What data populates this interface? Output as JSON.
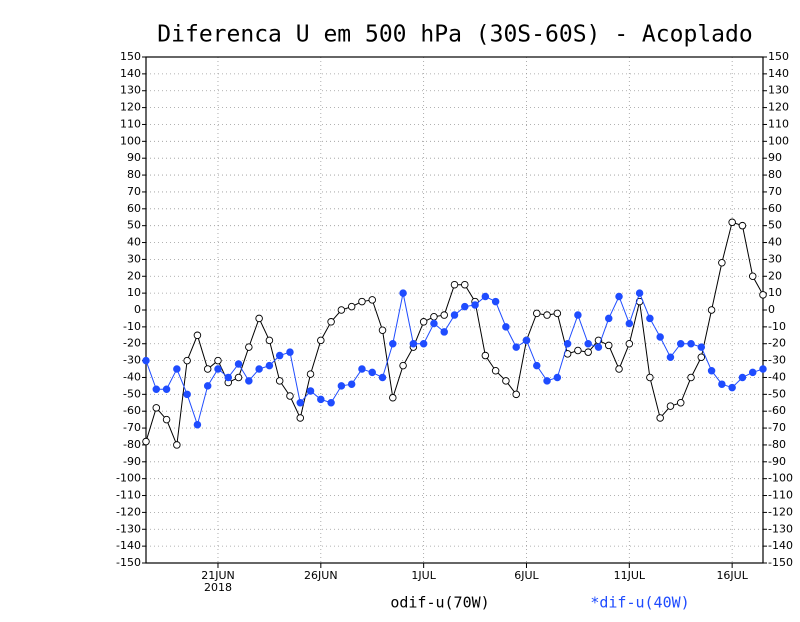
{
  "chart_data": {
    "type": "line",
    "title": "Diferenca U em 500 hPa (30S-60S) - Acoplado",
    "year_label": "2018",
    "x": [
      17.5,
      18,
      18.5,
      19,
      19.5,
      20,
      20.5,
      21,
      21.5,
      22,
      22.5,
      23,
      23.5,
      24,
      24.5,
      25,
      25.5,
      26,
      26.5,
      27,
      27.5,
      28,
      28.5,
      29,
      29.5,
      30,
      30.5,
      31,
      31.5,
      32,
      32.5,
      33,
      33.5,
      34,
      34.5,
      35,
      35.5,
      36,
      36.5,
      37,
      37.5,
      38,
      38.5,
      39,
      39.5,
      40,
      40.5,
      41,
      41.5,
      42,
      42.5,
      43,
      43.5,
      44,
      44.5,
      45,
      45.5,
      46,
      46.5,
      47,
      47.5
    ],
    "series": [
      {
        "name": "odif-u(70W)",
        "color": "#000000",
        "marker": "open",
        "values": [
          -78,
          -58,
          -65,
          -80,
          -30,
          -15,
          -35,
          -30,
          -43,
          -40,
          -22,
          -5,
          -18,
          -42,
          -51,
          -64,
          -38,
          -18,
          -7,
          0,
          2,
          5,
          6,
          -12,
          -52,
          -33,
          -22,
          -7,
          -4,
          -3,
          15,
          15,
          5,
          -27,
          -36,
          -42,
          -50,
          -18,
          -2,
          -3,
          -2,
          -26,
          -24,
          -25,
          -18,
          -21,
          -35,
          -20,
          5,
          -40,
          -64,
          -57,
          -55,
          -40,
          -28,
          0,
          28,
          52,
          50,
          20,
          9
        ]
      },
      {
        "name": "*dif-u(40W)",
        "color": "#1f4cff",
        "marker": "filled",
        "values": [
          -30,
          -47,
          -47,
          -35,
          -50,
          -68,
          -45,
          -35,
          -40,
          -32,
          -42,
          -35,
          -33,
          -27,
          -25,
          -55,
          -48,
          -53,
          -55,
          -45,
          -44,
          -35,
          -37,
          -40,
          -20,
          10,
          -20,
          -20,
          -8,
          -13,
          -3,
          2,
          3,
          8,
          5,
          -10,
          -22,
          -18,
          -33,
          -42,
          -40,
          -20,
          -3,
          -20,
          -22,
          -5,
          8,
          -8,
          10,
          -5,
          -16,
          -28,
          -20,
          -20,
          -22,
          -36,
          -44,
          -46,
          -40,
          -37,
          -35
        ]
      }
    ],
    "xlim": [
      17.5,
      47.5
    ],
    "xticks": [
      {
        "value": 21,
        "label": "21JUN"
      },
      {
        "value": 26,
        "label": "26JUN"
      },
      {
        "value": 31,
        "label": "1JUL"
      },
      {
        "value": 36,
        "label": "6JUL"
      },
      {
        "value": 41,
        "label": "11JUL"
      },
      {
        "value": 46,
        "label": "16JUL"
      }
    ],
    "ylim": [
      -150,
      150
    ],
    "yticks": [
      -150,
      -140,
      -130,
      -120,
      -110,
      -100,
      -90,
      -80,
      -70,
      -60,
      -50,
      -40,
      -30,
      -20,
      -10,
      0,
      10,
      20,
      30,
      40,
      50,
      60,
      70,
      80,
      90,
      100,
      110,
      120,
      130,
      140,
      150
    ],
    "grid": true
  }
}
